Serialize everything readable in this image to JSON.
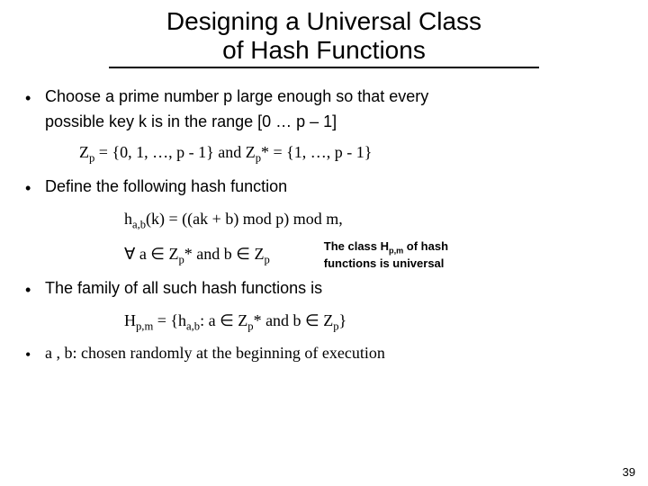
{
  "title_line1": "Designing a Universal Class",
  "title_line2": "of Hash Functions",
  "bullets": {
    "b1a": "Choose a prime number p large enough so that every",
    "b1b": "possible key k is in the range [0 … p – 1]",
    "zp": "Zₚ = {0, 1, …, p - 1} and Zₚ* = {1, …, p - 1}",
    "b2": "Define the following hash function",
    "hab": "h",
    "hab_sub": "a,b",
    "hab_rest": "(k) = ((ak + b) mod p) mod m,",
    "forall": "∀ a ∈ Zₚ* and b ∈ Zₚ",
    "note1": "The class H",
    "note_sub": "p,m",
    "note2": " of hash functions is universal",
    "b3": "The family of all such hash functions is",
    "family": "Hₚ,ₘ = {h",
    "family_sub": "a,b",
    "family_rest": ": a ∈ Zₚ* and b ∈ Zₚ}",
    "b4": "a , b: chosen randomly at the beginning of execution"
  },
  "page_number": "39",
  "colors": {
    "text": "#000000",
    "background": "#ffffff"
  },
  "fonts": {
    "title_size": 28,
    "body_size": 18,
    "note_size": 13
  }
}
